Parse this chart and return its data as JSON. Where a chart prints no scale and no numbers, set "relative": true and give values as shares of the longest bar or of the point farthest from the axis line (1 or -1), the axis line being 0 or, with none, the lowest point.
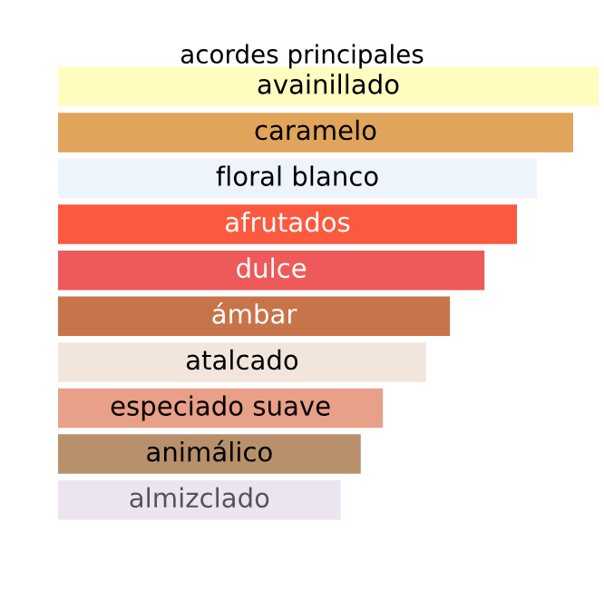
{
  "chart_data": {
    "type": "bar",
    "orientation": "horizontal",
    "relative": true,
    "title": "acordes principales",
    "categories": [
      "avainillado",
      "caramelo",
      "floral blanco",
      "afrutados",
      "dulce",
      "ámbar",
      "atalcado",
      "especiado suave",
      "animálico",
      "almizclado"
    ],
    "values": [
      1,
      0.953,
      0.886,
      0.849,
      0.789,
      0.725,
      0.681,
      0.601,
      0.56,
      0.523
    ],
    "colors": [
      "#fffcc0",
      "#e0a55a",
      "#eef4fc",
      "#fc5a3f",
      "#ee5a5a",
      "#c8744a",
      "#f2e6dc",
      "#e8a088",
      "#b8906c",
      "#ede4f2"
    ]
  }
}
